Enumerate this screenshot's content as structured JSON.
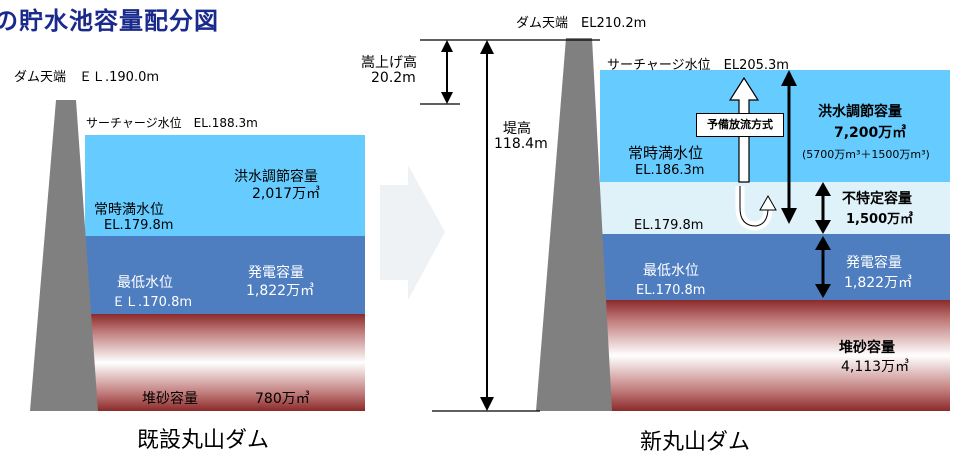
{
  "title": "の貯水池容量配分図",
  "old_dam": {
    "crest": "ダム天端　ＥＬ.190.0m",
    "surcharge": "サーチャージ水位　EL.188.3m",
    "flood_control": "洪水調節容量",
    "flood_control_value": "2,017万㎥",
    "normal_water": "常時満水位",
    "normal_water_el": "EL.179.8m",
    "power": "発電容量",
    "power_value": "1,822万㎥",
    "min_water": "最低水位",
    "min_water_el": "ＥＬ.170.8m",
    "sediment": "堆砂容量",
    "sediment_value": "780万㎥",
    "caption": "既設丸山ダム"
  },
  "new_dam": {
    "crest": "ダム天端　EL210.2m",
    "raise": "嵩上げ高",
    "raise_value": "20.2m",
    "height": "堤高",
    "height_value": "118.4m",
    "surcharge": "サーチャージ水位　EL205.3m",
    "preliminary_release": "予備放流方式",
    "flood_control": "洪水調節容量",
    "flood_control_value": "7,200万㎥",
    "flood_control_breakdown": "(5700万m³＋1500万m³)",
    "normal_water": "常時満水位",
    "normal_water_el": "EL.186.3m",
    "unspecified": "不特定容量",
    "unspecified_value": "1,500万㎥",
    "el_179": "EL.179.8m",
    "power": "発電容量",
    "power_value": "1,822万㎥",
    "min_water": "最低水位",
    "min_water_el": "EL.170.8m",
    "sediment": "堆砂容量",
    "sediment_value": "4,113万㎥",
    "caption": "新丸山ダム"
  },
  "colors": {
    "title": "#1a2a8c",
    "dam": "#808080",
    "flood_water": "#66ccff",
    "unspecified_water": "#dff2fa",
    "power_water": "#4e7ec0",
    "sediment_top": "#8b2a2a",
    "arrow_fill": "#e8edf2"
  }
}
